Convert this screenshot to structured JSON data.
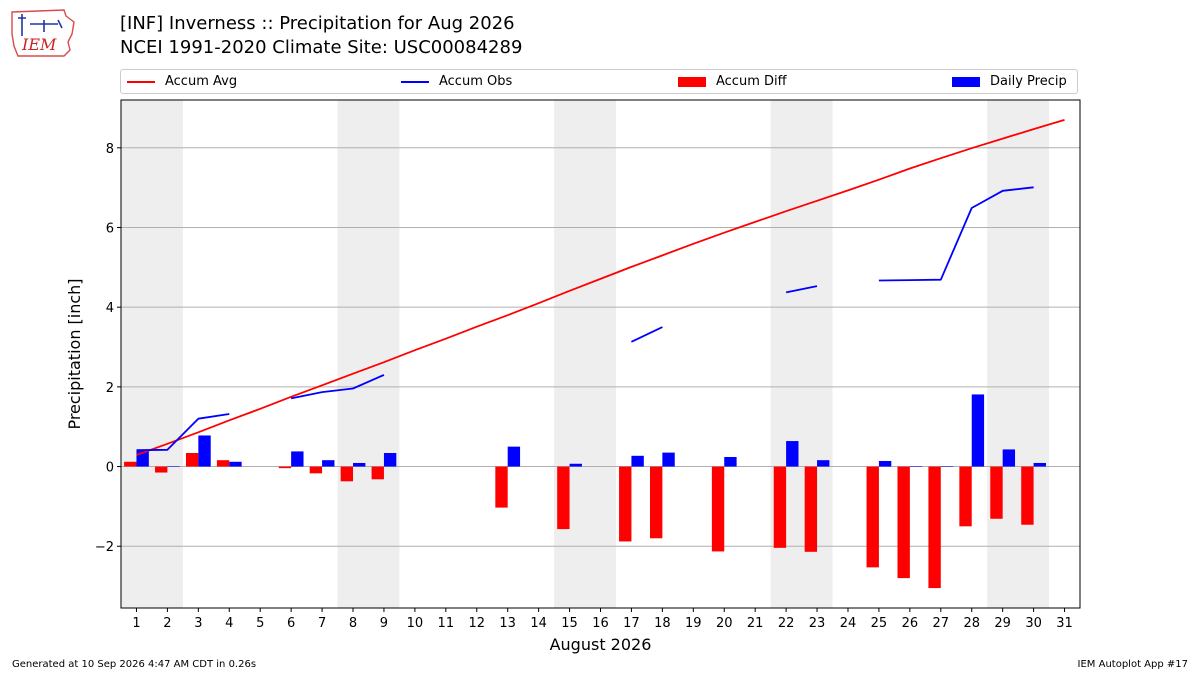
{
  "header": {
    "logo_text": "IEM",
    "title_line1": "[INF] Inverness :: Precipitation for Aug 2026",
    "title_line2": "NCEI 1991-2020 Climate Site: USC00084289"
  },
  "footer": {
    "generated": "Generated at 10 Sep 2026 4:47 AM CDT in 0.26s",
    "app": "IEM Autoplot App #17"
  },
  "colors": {
    "accum_avg": "#ff0000",
    "accum_obs": "#0000ff",
    "accum_diff": "#ff0000",
    "daily_precip": "#0000ff",
    "weekend_shade": "#eeeeee"
  },
  "chart_data": {
    "type": "bar",
    "title": "[INF] Inverness :: Precipitation for Aug 2026",
    "subtitle": "NCEI 1991-2020 Climate Site: USC00084289",
    "xlabel": "August 2026",
    "ylabel": "Precipitation [inch]",
    "ylim": [
      -3.55,
      9.2
    ],
    "yticks": [
      -2,
      0,
      2,
      4,
      6,
      8
    ],
    "ytick_labels": [
      "−2",
      "0",
      "2",
      "4",
      "6",
      "8"
    ],
    "xlim": [
      0.5,
      31.5
    ],
    "x": [
      1,
      2,
      3,
      4,
      5,
      6,
      7,
      8,
      9,
      10,
      11,
      12,
      13,
      14,
      15,
      16,
      17,
      18,
      19,
      20,
      21,
      22,
      23,
      24,
      25,
      26,
      27,
      28,
      29,
      30,
      31
    ],
    "grid": "horizontal",
    "legend_position": "top",
    "weekend_shading": [
      [
        0.5,
        2.5
      ],
      [
        7.5,
        9.5
      ],
      [
        14.5,
        16.5
      ],
      [
        21.5,
        23.5
      ],
      [
        28.5,
        30.5
      ]
    ],
    "series": [
      {
        "name": "Accum Avg",
        "kind": "line",
        "values": [
          0.29,
          0.57,
          0.86,
          1.16,
          1.45,
          1.75,
          2.04,
          2.33,
          2.62,
          2.92,
          3.21,
          3.51,
          3.8,
          4.1,
          4.41,
          4.71,
          5.01,
          5.3,
          5.59,
          5.87,
          6.14,
          6.41,
          6.67,
          6.93,
          7.2,
          7.48,
          7.74,
          7.99,
          8.23,
          8.47,
          8.7
        ]
      },
      {
        "name": "Accum Obs",
        "kind": "line",
        "values": [
          0.41,
          0.42,
          1.2,
          1.32,
          null,
          1.71,
          1.87,
          1.96,
          2.3,
          null,
          null,
          null,
          null,
          null,
          null,
          null,
          3.13,
          3.5,
          null,
          null,
          null,
          4.37,
          4.53,
          null,
          4.67,
          4.68,
          4.69,
          6.49,
          6.92,
          7.01,
          null
        ]
      },
      {
        "name": "Accum Diff",
        "kind": "bar",
        "values": [
          0.12,
          -0.15,
          0.34,
          0.16,
          null,
          -0.04,
          -0.17,
          -0.37,
          -0.32,
          null,
          null,
          null,
          -1.03,
          null,
          -1.57,
          null,
          -1.88,
          -1.8,
          null,
          -2.13,
          null,
          -2.04,
          -2.14,
          null,
          -2.53,
          -2.8,
          -3.05,
          -1.5,
          -1.31,
          -1.46,
          null
        ]
      },
      {
        "name": "Daily Precip",
        "kind": "bar",
        "values": [
          0.41,
          0.01,
          0.78,
          0.12,
          null,
          0.38,
          0.16,
          0.09,
          0.34,
          null,
          null,
          null,
          0.5,
          null,
          0.07,
          null,
          0.27,
          0.35,
          null,
          0.24,
          null,
          0.64,
          0.16,
          null,
          0.14,
          0.01,
          0.01,
          1.81,
          0.43,
          0.09,
          null
        ]
      }
    ]
  }
}
